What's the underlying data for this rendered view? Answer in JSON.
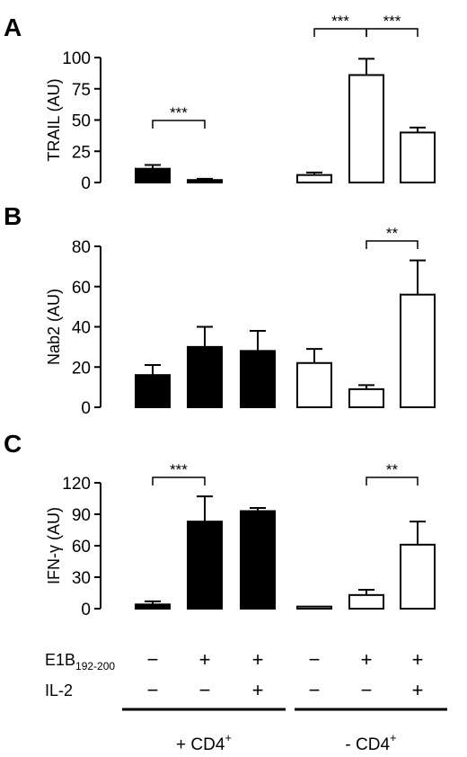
{
  "chart_data": [
    {
      "panel_letter": "A",
      "type": "bar",
      "ylabel": "TRAIL (AU)",
      "ylim": [
        0,
        100
      ],
      "yticks": [
        0,
        25,
        50,
        75,
        100
      ],
      "values": [
        11,
        2,
        0,
        6,
        86,
        40
      ],
      "errors": [
        3,
        1,
        0,
        2,
        13,
        4
      ],
      "fills": [
        "#000000",
        "#000000",
        "#000000",
        "#ffffff",
        "#ffffff",
        "#ffffff"
      ],
      "significance": [
        {
          "from": 0,
          "to": 1,
          "label": "***"
        },
        {
          "from": 3,
          "to": 4,
          "label": "***"
        },
        {
          "from": 4,
          "to": 5,
          "label": "***"
        }
      ]
    },
    {
      "panel_letter": "B",
      "type": "bar",
      "ylabel": "Nab2 (AU)",
      "ylim": [
        0,
        80
      ],
      "yticks": [
        0,
        20,
        40,
        60,
        80
      ],
      "values": [
        16,
        30,
        28,
        22,
        9,
        56
      ],
      "errors": [
        5,
        10,
        10,
        7,
        2,
        17
      ],
      "fills": [
        "#000000",
        "#000000",
        "#000000",
        "#ffffff",
        "#ffffff",
        "#ffffff"
      ],
      "significance": [
        {
          "from": 4,
          "to": 5,
          "label": "**"
        }
      ]
    },
    {
      "panel_letter": "C",
      "type": "bar",
      "ylabel": "IFN-γ (AU)",
      "ylim": [
        0,
        120
      ],
      "yticks": [
        0,
        30,
        60,
        90,
        120
      ],
      "values": [
        4,
        83,
        93,
        2,
        13,
        61
      ],
      "errors": [
        3,
        24,
        3,
        0,
        5,
        22
      ],
      "fills": [
        "#000000",
        "#000000",
        "#000000",
        "#ffffff",
        "#ffffff",
        "#ffffff"
      ],
      "significance": [
        {
          "from": 0,
          "to": 1,
          "label": "***"
        },
        {
          "from": 4,
          "to": 5,
          "label": "**"
        }
      ]
    }
  ],
  "conditions": {
    "rows": [
      {
        "label_main": "E1B",
        "label_sub": "192-200",
        "signs": [
          "−",
          "+",
          "+",
          "−",
          "+",
          "+"
        ]
      },
      {
        "label_main": "IL-2",
        "label_sub": "",
        "signs": [
          "−",
          "−",
          "+",
          "−",
          "−",
          "+"
        ]
      }
    ],
    "groups": [
      {
        "label": "+ CD4",
        "superscript": "+"
      },
      {
        "label": "- CD4",
        "superscript": "+"
      }
    ]
  }
}
